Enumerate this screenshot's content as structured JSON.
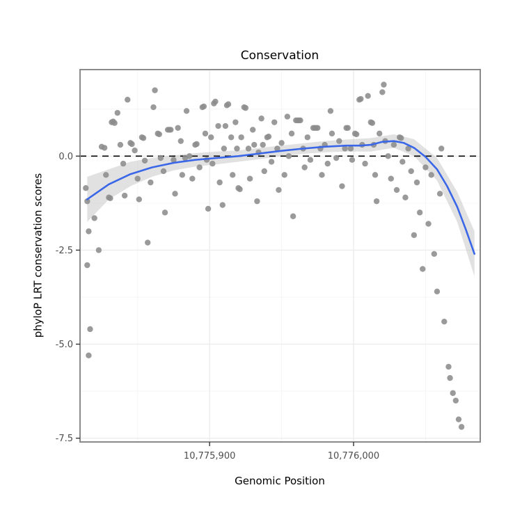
{
  "chart_data": {
    "type": "scatter",
    "title": "Conservation",
    "xlabel": "Genomic Position",
    "ylabel": "phyloP LRT conservation scores",
    "xlim": [
      10775810,
      10776088
    ],
    "ylim": [
      -7.6,
      2.3
    ],
    "x_ticks": [
      {
        "value": 10775900,
        "label": "10,775,900"
      },
      {
        "value": 10776000,
        "label": "10,776,000"
      }
    ],
    "x_minor": [
      10775850,
      10775950,
      10776050
    ],
    "y_ticks": [
      {
        "value": 0.0,
        "label": "0.0"
      },
      {
        "value": -2.5,
        "label": "-2.5"
      },
      {
        "value": -5.0,
        "label": "-5.0"
      },
      {
        "value": -7.5,
        "label": "-7.5"
      }
    ],
    "y_minor": [
      1.25,
      -1.25,
      -3.75,
      -6.25
    ],
    "reference_line_y": 0,
    "legend": "none",
    "grid": "on",
    "colors": {
      "point": "#8c8c8c",
      "smooth": "#3a66e8",
      "ribbon": "#bdbdbd",
      "grid_major": "#ebebeb",
      "grid_minor": "#f6f6f6",
      "panel_border": "#8a8a8a",
      "reference_line": "#000000",
      "tick_label": "#4d4d4d"
    },
    "points": [
      [
        10775814,
        -0.85
      ],
      [
        10775815,
        -1.2
      ],
      [
        10775816,
        -2.0
      ],
      [
        10775815,
        -2.9
      ],
      [
        10775817,
        -4.6
      ],
      [
        10775816,
        -5.3
      ],
      [
        10775820,
        -1.65
      ],
      [
        10775823,
        -2.5
      ],
      [
        10775825,
        0.25
      ],
      [
        10775827,
        0.22
      ],
      [
        10775828,
        -0.5
      ],
      [
        10775830,
        -1.1
      ],
      [
        10775831,
        -1.12
      ],
      [
        10775832,
        0.9
      ],
      [
        10775833,
        0.92
      ],
      [
        10775834,
        0.88
      ],
      [
        10775836,
        1.15
      ],
      [
        10775838,
        0.3
      ],
      [
        10775840,
        -0.2
      ],
      [
        10775841,
        -1.05
      ],
      [
        10775843,
        1.5
      ],
      [
        10775845,
        0.35
      ],
      [
        10775846,
        0.32
      ],
      [
        10775848,
        0.15
      ],
      [
        10775850,
        -0.6
      ],
      [
        10775851,
        -1.15
      ],
      [
        10775853,
        0.5
      ],
      [
        10775854,
        0.48
      ],
      [
        10775855,
        -0.12
      ],
      [
        10775857,
        -2.3
      ],
      [
        10775859,
        -0.7
      ],
      [
        10775861,
        1.3
      ],
      [
        10775862,
        1.75
      ],
      [
        10775864,
        0.6
      ],
      [
        10775865,
        0.58
      ],
      [
        10775866,
        -0.05
      ],
      [
        10775868,
        -0.4
      ],
      [
        10775869,
        -1.5
      ],
      [
        10775871,
        0.7
      ],
      [
        10775872,
        0.7
      ],
      [
        10775873,
        0.7
      ],
      [
        10775875,
        -0.1
      ],
      [
        10775876,
        -1.0
      ],
      [
        10775878,
        0.75
      ],
      [
        10775880,
        0.4
      ],
      [
        10775881,
        -0.5
      ],
      [
        10775883,
        -0.05
      ],
      [
        10775884,
        1.2
      ],
      [
        10775886,
        0.0
      ],
      [
        10775888,
        -0.6
      ],
      [
        10775890,
        0.3
      ],
      [
        10775891,
        0.32
      ],
      [
        10775893,
        -0.3
      ],
      [
        10775895,
        1.3
      ],
      [
        10775896,
        1.32
      ],
      [
        10775897,
        0.6
      ],
      [
        10775898,
        -0.1
      ],
      [
        10775899,
        -1.4
      ],
      [
        10775901,
        0.5
      ],
      [
        10775902,
        -0.2
      ],
      [
        10775903,
        1.4
      ],
      [
        10775904,
        1.45
      ],
      [
        10775906,
        0.8
      ],
      [
        10775907,
        -0.7
      ],
      [
        10775909,
        -1.3
      ],
      [
        10775910,
        0.2
      ],
      [
        10775911,
        0.8
      ],
      [
        10775912,
        1.35
      ],
      [
        10775913,
        1.38
      ],
      [
        10775915,
        0.5
      ],
      [
        10775916,
        -0.5
      ],
      [
        10775918,
        0.9
      ],
      [
        10775919,
        0.2
      ],
      [
        10775920,
        -0.85
      ],
      [
        10775921,
        -0.88
      ],
      [
        10775922,
        0.5
      ],
      [
        10775924,
        1.3
      ],
      [
        10775925,
        1.28
      ],
      [
        10775927,
        0.2
      ],
      [
        10775928,
        -0.6
      ],
      [
        10775930,
        0.7
      ],
      [
        10775931,
        0.3
      ],
      [
        10775933,
        -1.2
      ],
      [
        10775934,
        0.1
      ],
      [
        10775936,
        1.0
      ],
      [
        10775937,
        0.3
      ],
      [
        10775938,
        -0.4
      ],
      [
        10775940,
        0.5
      ],
      [
        10775941,
        0.52
      ],
      [
        10775943,
        -0.15
      ],
      [
        10775945,
        0.9
      ],
      [
        10775947,
        0.2
      ],
      [
        10775948,
        -0.9
      ],
      [
        10775950,
        0.35
      ],
      [
        10775952,
        -0.5
      ],
      [
        10775954,
        1.05
      ],
      [
        10775955,
        0.0
      ],
      [
        10775957,
        0.6
      ],
      [
        10775958,
        -1.6
      ],
      [
        10775960,
        0.95
      ],
      [
        10775961,
        0.95
      ],
      [
        10775962,
        0.95
      ],
      [
        10775963,
        0.95
      ],
      [
        10775965,
        0.2
      ],
      [
        10775966,
        -0.3
      ],
      [
        10775968,
        0.5
      ],
      [
        10775970,
        -0.1
      ],
      [
        10775972,
        0.75
      ],
      [
        10775973,
        0.75
      ],
      [
        10775974,
        0.75
      ],
      [
        10775975,
        0.75
      ],
      [
        10775977,
        0.2
      ],
      [
        10775978,
        -0.5
      ],
      [
        10775980,
        0.3
      ],
      [
        10775982,
        -0.2
      ],
      [
        10775984,
        1.2
      ],
      [
        10775985,
        0.6
      ],
      [
        10775988,
        -0.05
      ],
      [
        10775990,
        0.4
      ],
      [
        10775992,
        -0.8
      ],
      [
        10775994,
        0.2
      ],
      [
        10775995,
        0.75
      ],
      [
        10775996,
        0.75
      ],
      [
        10775998,
        0.2
      ],
      [
        10775999,
        -0.1
      ],
      [
        10776001,
        0.6
      ],
      [
        10776002,
        0.58
      ],
      [
        10776004,
        1.5
      ],
      [
        10776005,
        1.52
      ],
      [
        10776006,
        0.3
      ],
      [
        10776008,
        -0.2
      ],
      [
        10776010,
        1.6
      ],
      [
        10776012,
        0.9
      ],
      [
        10776013,
        0.88
      ],
      [
        10776014,
        0.3
      ],
      [
        10776015,
        -0.5
      ],
      [
        10776016,
        -1.2
      ],
      [
        10776018,
        0.6
      ],
      [
        10776020,
        1.7
      ],
      [
        10776021,
        1.9
      ],
      [
        10776022,
        0.4
      ],
      [
        10776024,
        0.0
      ],
      [
        10776026,
        -0.6
      ],
      [
        10776028,
        0.3
      ],
      [
        10776030,
        -0.9
      ],
      [
        10776032,
        0.5
      ],
      [
        10776033,
        0.48
      ],
      [
        10776034,
        -0.15
      ],
      [
        10776036,
        -1.1
      ],
      [
        10776038,
        0.2
      ],
      [
        10776040,
        -0.4
      ],
      [
        10776042,
        -2.1
      ],
      [
        10776044,
        -0.7
      ],
      [
        10776046,
        -1.5
      ],
      [
        10776048,
        -3.0
      ],
      [
        10776050,
        -0.3
      ],
      [
        10776052,
        -1.8
      ],
      [
        10776054,
        -0.5
      ],
      [
        10776056,
        -2.6
      ],
      [
        10776058,
        -3.6
      ],
      [
        10776060,
        -1.0
      ],
      [
        10776061,
        0.2
      ],
      [
        10776063,
        -4.4
      ],
      [
        10776066,
        -5.6
      ],
      [
        10776067,
        -5.9
      ],
      [
        10776069,
        -6.3
      ],
      [
        10776071,
        -6.5
      ],
      [
        10776073,
        -7.0
      ],
      [
        10776075,
        -7.2
      ]
    ],
    "smooth_line": [
      [
        10775815,
        -1.15
      ],
      [
        10775830,
        -0.75
      ],
      [
        10775845,
        -0.48
      ],
      [
        10775860,
        -0.3
      ],
      [
        10775875,
        -0.18
      ],
      [
        10775890,
        -0.1
      ],
      [
        10775905,
        -0.05
      ],
      [
        10775920,
        0.0
      ],
      [
        10775935,
        0.07
      ],
      [
        10775950,
        0.14
      ],
      [
        10775965,
        0.2
      ],
      [
        10775980,
        0.25
      ],
      [
        10775995,
        0.28
      ],
      [
        10776005,
        0.28
      ],
      [
        10776012,
        0.3
      ],
      [
        10776020,
        0.38
      ],
      [
        10776028,
        0.4
      ],
      [
        10776035,
        0.35
      ],
      [
        10776042,
        0.22
      ],
      [
        10776050,
        -0.02
      ],
      [
        10776058,
        -0.35
      ],
      [
        10776065,
        -0.8
      ],
      [
        10776072,
        -1.35
      ],
      [
        10776078,
        -1.95
      ],
      [
        10776084,
        -2.6
      ]
    ],
    "ribbon": [
      {
        "x": 10775815,
        "lo": -1.75,
        "hi": -0.55
      },
      {
        "x": 10775830,
        "lo": -1.15,
        "hi": -0.35
      },
      {
        "x": 10775845,
        "lo": -0.8,
        "hi": -0.15
      },
      {
        "x": 10775860,
        "lo": -0.55,
        "hi": -0.05
      },
      {
        "x": 10775875,
        "lo": -0.38,
        "hi": 0.02
      },
      {
        "x": 10775890,
        "lo": -0.28,
        "hi": 0.08
      },
      {
        "x": 10775905,
        "lo": -0.22,
        "hi": 0.12
      },
      {
        "x": 10775920,
        "lo": -0.15,
        "hi": 0.15
      },
      {
        "x": 10775935,
        "lo": -0.08,
        "hi": 0.22
      },
      {
        "x": 10775950,
        "lo": 0.0,
        "hi": 0.28
      },
      {
        "x": 10775965,
        "lo": 0.06,
        "hi": 0.34
      },
      {
        "x": 10775980,
        "lo": 0.1,
        "hi": 0.4
      },
      {
        "x": 10775995,
        "lo": 0.12,
        "hi": 0.44
      },
      {
        "x": 10776012,
        "lo": 0.12,
        "hi": 0.48
      },
      {
        "x": 10776028,
        "lo": 0.22,
        "hi": 0.58
      },
      {
        "x": 10776042,
        "lo": 0.0,
        "hi": 0.45
      },
      {
        "x": 10776058,
        "lo": -0.65,
        "hi": -0.05
      },
      {
        "x": 10776072,
        "lo": -1.75,
        "hi": -0.95
      },
      {
        "x": 10776084,
        "lo": -3.2,
        "hi": -2.0
      }
    ]
  }
}
